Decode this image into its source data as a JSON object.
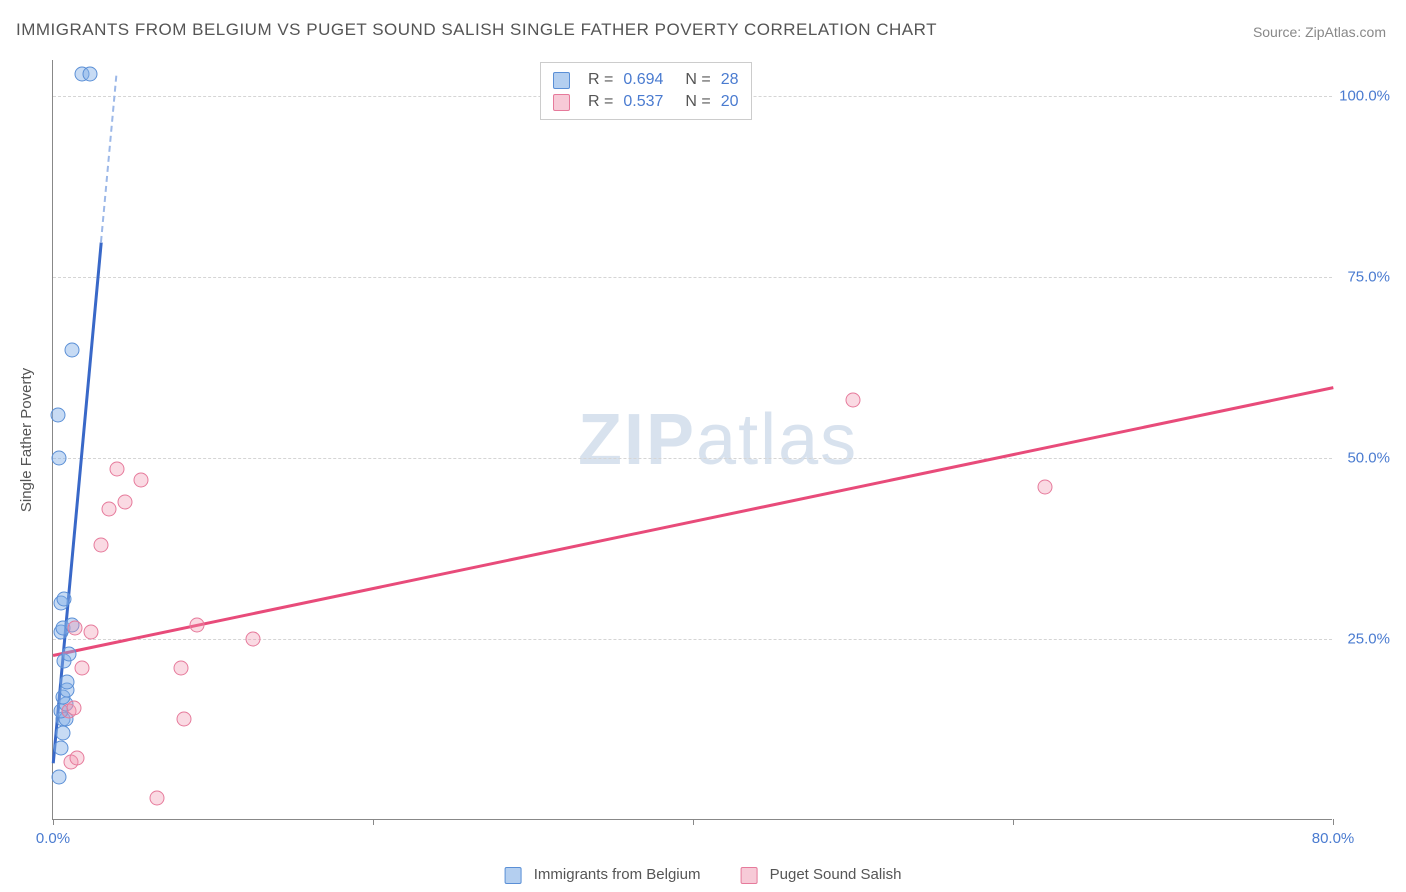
{
  "title": "IMMIGRANTS FROM BELGIUM VS PUGET SOUND SALISH SINGLE FATHER POVERTY CORRELATION CHART",
  "source": "Source: ZipAtlas.com",
  "y_axis_label": "Single Father Poverty",
  "watermark": "ZIPatlas",
  "chart": {
    "type": "scatter",
    "background_color": "#ffffff",
    "grid_color": "#d5d5d5",
    "xlim": [
      0,
      80
    ],
    "ylim": [
      0,
      105
    ],
    "x_ticks": [
      0,
      20,
      40,
      60,
      80
    ],
    "x_tick_labels": [
      "0.0%",
      "",
      "",
      "",
      "80.0%"
    ],
    "y_ticks": [
      25,
      50,
      75,
      100
    ],
    "y_tick_labels": [
      "25.0%",
      "50.0%",
      "75.0%",
      "100.0%"
    ],
    "axis_label_color": "#4a7bd0",
    "axis_label_fontsize": 15,
    "title_fontsize": 17,
    "title_color": "#555555",
    "marker_size": 15,
    "series": [
      {
        "name": "Immigrants from Belgium",
        "color_fill": "rgba(130,175,230,0.45)",
        "color_stroke": "#5a8fd6",
        "line_color": "#3968c8",
        "r": 0.694,
        "n": 28,
        "trend": {
          "x1": 0,
          "y1": 8,
          "x2": 3,
          "y2": 80,
          "dash_from_y": 80,
          "dash_to_y": 103
        },
        "points": [
          [
            0.4,
            6
          ],
          [
            0.5,
            10
          ],
          [
            0.6,
            12
          ],
          [
            0.6,
            14
          ],
          [
            0.8,
            14
          ],
          [
            0.5,
            15
          ],
          [
            0.8,
            16
          ],
          [
            0.6,
            17
          ],
          [
            0.9,
            18
          ],
          [
            0.9,
            19
          ],
          [
            0.7,
            22
          ],
          [
            1.0,
            23
          ],
          [
            0.5,
            26
          ],
          [
            0.6,
            26.5
          ],
          [
            1.2,
            27
          ],
          [
            0.5,
            30
          ],
          [
            0.7,
            30.5
          ],
          [
            0.4,
            50
          ],
          [
            0.3,
            56
          ],
          [
            1.2,
            65
          ],
          [
            1.8,
            103
          ],
          [
            2.3,
            103
          ]
        ]
      },
      {
        "name": "Puget Sound Salish",
        "color_fill": "rgba(240,150,175,0.35)",
        "color_stroke": "#e67a9b",
        "line_color": "#e84b7a",
        "r": 0.537,
        "n": 20,
        "trend": {
          "x1": 0,
          "y1": 23,
          "x2": 80,
          "y2": 60
        },
        "points": [
          [
            1.0,
            15
          ],
          [
            1.3,
            15.5
          ],
          [
            1.1,
            8
          ],
          [
            1.5,
            8.5
          ],
          [
            1.8,
            21
          ],
          [
            2.4,
            26
          ],
          [
            1.4,
            26.5
          ],
          [
            3.0,
            38
          ],
          [
            3.5,
            43
          ],
          [
            4.5,
            44
          ],
          [
            5.5,
            47
          ],
          [
            4.0,
            48.5
          ],
          [
            6.5,
            3
          ],
          [
            8.2,
            14
          ],
          [
            8.0,
            21
          ],
          [
            9.0,
            27
          ],
          [
            12.5,
            25
          ],
          [
            50,
            58
          ],
          [
            62,
            46
          ]
        ]
      }
    ]
  },
  "legend_bottom": [
    {
      "label": "Immigrants from Belgium",
      "class": "blue"
    },
    {
      "label": "Puget Sound Salish",
      "class": "pink"
    }
  ],
  "stats": [
    {
      "swatch": "blue",
      "r": "0.694",
      "n": "28"
    },
    {
      "swatch": "pink",
      "r": "0.537",
      "n": "20"
    }
  ]
}
